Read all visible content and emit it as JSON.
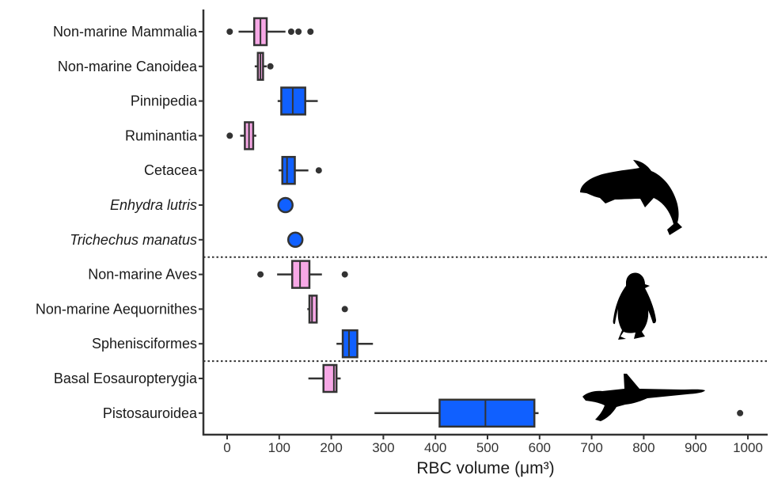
{
  "chart_data": {
    "type": "box",
    "xlabel": "RBC volume (μm³)",
    "xlim": [
      -22,
      1032
    ],
    "x_ticks": [
      0,
      100,
      200,
      300,
      400,
      500,
      600,
      700,
      800,
      900,
      1000
    ],
    "x_tick_labels": [
      "0",
      "100",
      "200",
      "300",
      "400",
      "500",
      "600",
      "700",
      "800",
      "900",
      "1000"
    ],
    "grid": false,
    "colors": {
      "marine": "#1060ff",
      "non_marine": "#f7a8e6",
      "stroke": "#333333"
    },
    "group_separators_after_index": [
      6,
      9
    ],
    "categories": [
      {
        "label": "Non-marine Mammalia",
        "italic": false,
        "group": "non_marine",
        "kind": "box",
        "whisker_low": 22,
        "q1": 52,
        "median": 64,
        "q3": 76,
        "whisker_high": 112,
        "outliers": [
          5,
          123,
          137,
          160
        ]
      },
      {
        "label": "Non-marine Canoidea",
        "italic": false,
        "group": "non_marine",
        "kind": "box",
        "whisker_low": 53,
        "q1": 59,
        "median": 64,
        "q3": 69,
        "whisker_high": 76,
        "outliers": [
          83
        ]
      },
      {
        "label": "Pinnipedia",
        "italic": false,
        "group": "marine",
        "kind": "box",
        "whisker_low": 97,
        "q1": 104,
        "median": 126,
        "q3": 150,
        "whisker_high": 174,
        "outliers": []
      },
      {
        "label": "Ruminantia",
        "italic": false,
        "group": "non_marine",
        "kind": "box",
        "whisker_low": 25,
        "q1": 34,
        "median": 42,
        "q3": 50,
        "whisker_high": 56,
        "outliers": [
          5
        ]
      },
      {
        "label": "Cetacea",
        "italic": false,
        "group": "marine",
        "kind": "box",
        "whisker_low": 99,
        "q1": 106,
        "median": 115,
        "q3": 130,
        "whisker_high": 156,
        "outliers": [
          176
        ]
      },
      {
        "label": "Enhydra lutris",
        "italic": true,
        "group": "marine",
        "kind": "point",
        "value": 112
      },
      {
        "label": "Trichechus manatus",
        "italic": true,
        "group": "marine",
        "kind": "point",
        "value": 131
      },
      {
        "label": "Non-marine Aves",
        "italic": false,
        "group": "non_marine",
        "kind": "box",
        "whisker_low": 96,
        "q1": 125,
        "median": 140,
        "q3": 158,
        "whisker_high": 182,
        "outliers": [
          64,
          226
        ]
      },
      {
        "label": "Non-marine Aequornithes",
        "italic": false,
        "group": "non_marine",
        "kind": "box",
        "whisker_low": 154,
        "q1": 158,
        "median": 163,
        "q3": 172,
        "whisker_high": 174,
        "outliers": [
          226
        ]
      },
      {
        "label": "Sphenisciformes",
        "italic": false,
        "group": "marine",
        "kind": "box",
        "whisker_low": 210,
        "q1": 222,
        "median": 234,
        "q3": 250,
        "whisker_high": 280,
        "outliers": []
      },
      {
        "label": "Basal Eosauropterygia",
        "italic": false,
        "group": "non_marine",
        "kind": "box",
        "whisker_low": 156,
        "q1": 185,
        "median": 205,
        "q3": 210,
        "whisker_high": 218,
        "outliers": []
      },
      {
        "label": "Pistosauroidea",
        "italic": false,
        "group": "marine",
        "kind": "box",
        "whisker_low": 283,
        "q1": 408,
        "median": 496,
        "q3": 590,
        "whisker_high": 598,
        "outliers": [
          985
        ]
      }
    ]
  },
  "silhouettes": [
    {
      "icon": "dolphin-silhouette-icon",
      "row": "Cetacea"
    },
    {
      "icon": "penguin-silhouette-icon",
      "row": "Non-marine Aequornithes"
    },
    {
      "icon": "plesiosaur-silhouette-icon",
      "row": "Pistosauroidea"
    }
  ]
}
